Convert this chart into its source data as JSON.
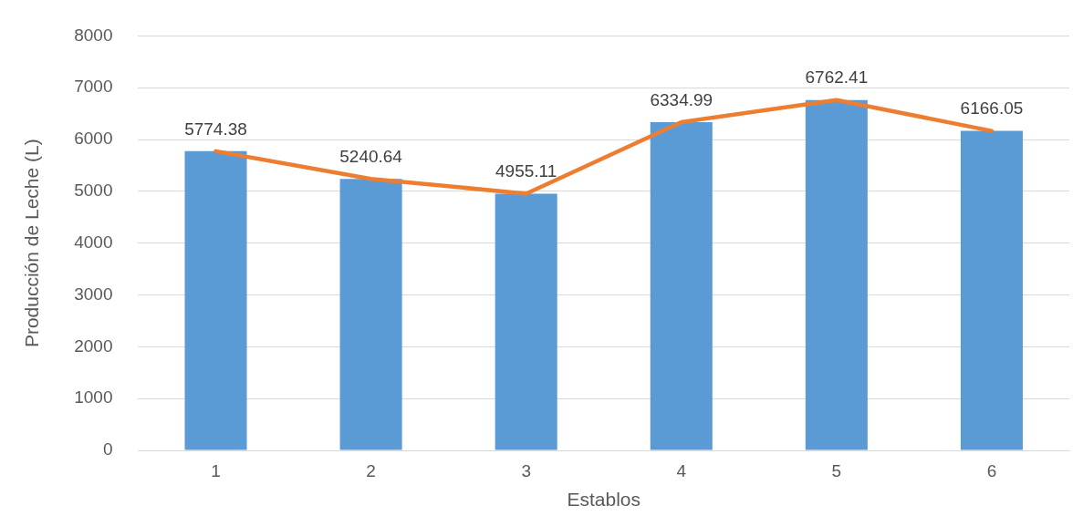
{
  "chart_data": {
    "type": "bar",
    "xlabel": "Establos",
    "ylabel": "Producción de Leche (L)",
    "categories": [
      "1",
      "2",
      "3",
      "4",
      "5",
      "6"
    ],
    "series": [
      {
        "color": "#5b9bd5",
        "values": [
          5774.38,
          5240.64,
          4955.11,
          6334.99,
          6762.41,
          6166.05
        ],
        "value_labels": [
          "5774.38",
          "5240.64",
          "4955.11",
          "6334.99",
          "6762.41",
          "6166.05"
        ]
      },
      {
        "type": "line",
        "color": "#ed7d31",
        "values": [
          5774.38,
          5240.64,
          4955.11,
          6334.99,
          6762.41,
          6166.05
        ]
      }
    ],
    "ylim": [
      0,
      8000
    ],
    "yticks": [
      0,
      1000,
      2000,
      3000,
      4000,
      5000,
      6000,
      7000,
      8000
    ],
    "grid": "y",
    "marker": "none"
  }
}
